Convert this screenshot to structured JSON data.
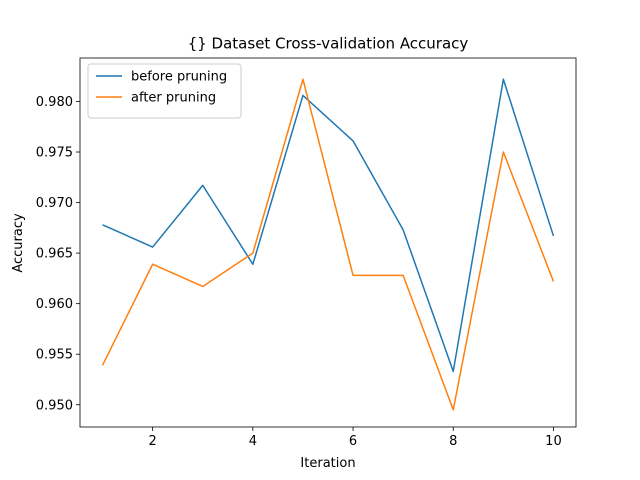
{
  "chart_data": {
    "type": "line",
    "title": "{} Dataset Cross-validation Accuracy",
    "xlabel": "Iteration",
    "ylabel": "Accuracy",
    "x": [
      1,
      2,
      3,
      4,
      5,
      6,
      7,
      8,
      9,
      10
    ],
    "xlim": [
      0.55,
      10.45
    ],
    "ylim": [
      0.9478,
      0.9843
    ],
    "xticks": [
      2,
      4,
      6,
      8,
      10
    ],
    "yticks": [
      0.95,
      0.955,
      0.96,
      0.965,
      0.97,
      0.975,
      0.98
    ],
    "xtick_labels": [
      "2",
      "4",
      "6",
      "8",
      "10"
    ],
    "ytick_labels": [
      "0.950",
      "0.955",
      "0.960",
      "0.965",
      "0.970",
      "0.975",
      "0.980"
    ],
    "grid": false,
    "legend_position": "top-left",
    "series": [
      {
        "name": "before pruning",
        "color": "#1f77b4",
        "values": [
          0.9678,
          0.9656,
          0.9717,
          0.9639,
          0.9806,
          0.9761,
          0.9673,
          0.9533,
          0.9822,
          0.9667
        ]
      },
      {
        "name": "after pruning",
        "color": "#ff7f0e",
        "values": [
          0.9539,
          0.9639,
          0.9617,
          0.965,
          0.9822,
          0.9628,
          0.9628,
          0.9495,
          0.975,
          0.9622
        ]
      }
    ]
  }
}
